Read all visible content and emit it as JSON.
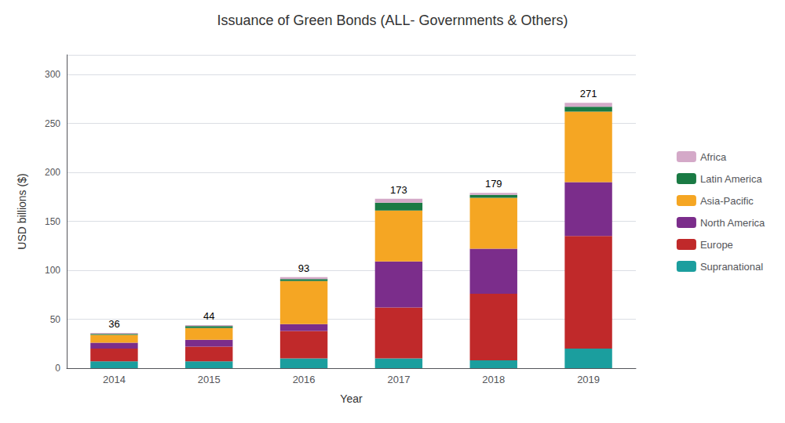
{
  "chart_data": {
    "type": "bar",
    "title": "Issuance of Green Bonds (ALL- Governments & Others)",
    "xlabel": "Year",
    "ylabel": "USD billions ($)",
    "categories": [
      "2014",
      "2015",
      "2016",
      "2017",
      "2018",
      "2019"
    ],
    "series": [
      {
        "name": "Supranational",
        "color": "#1B9E9E",
        "values": [
          7,
          7,
          10,
          10,
          8,
          20
        ]
      },
      {
        "name": "Europe",
        "color": "#C0292A",
        "values": [
          13,
          15,
          28,
          52,
          68,
          115
        ]
      },
      {
        "name": "North America",
        "color": "#7B2D8B",
        "values": [
          6,
          7,
          7,
          47,
          46,
          55
        ]
      },
      {
        "name": "Asia-Pacific",
        "color": "#F5A623",
        "values": [
          8,
          12,
          44,
          52,
          52,
          72
        ]
      },
      {
        "name": "Latin America",
        "color": "#1A7A44",
        "values": [
          1,
          2,
          2,
          8,
          3,
          5
        ]
      },
      {
        "name": "Africa",
        "color": "#D4A9C8",
        "values": [
          1,
          1,
          2,
          4,
          2,
          4
        ]
      }
    ],
    "totals": [
      36,
      44,
      93,
      173,
      179,
      271
    ],
    "stacked": true,
    "ylim": [
      0,
      320
    ],
    "yticks": [
      0,
      50,
      100,
      150,
      200,
      250,
      300
    ],
    "grid": true,
    "legend": "right"
  }
}
